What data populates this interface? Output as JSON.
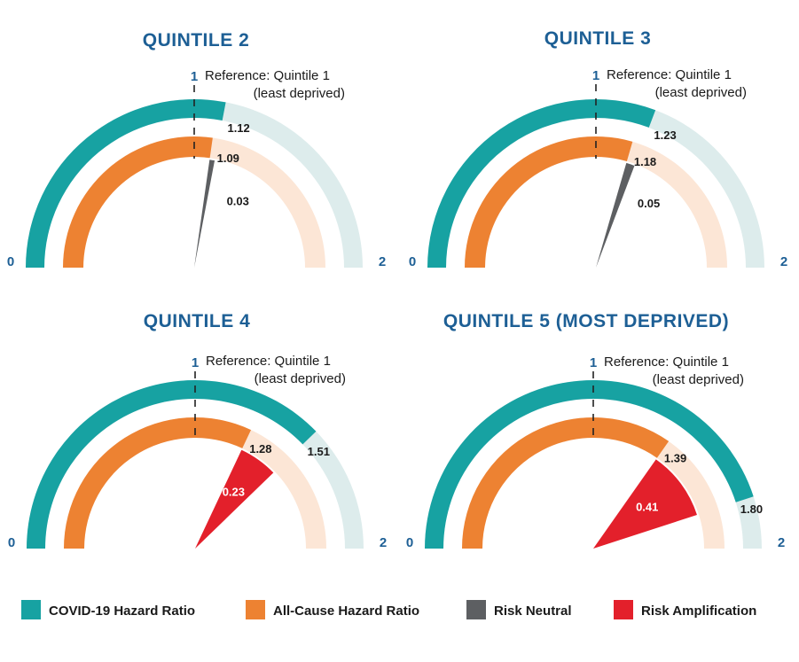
{
  "colors": {
    "covid": "#17a2a2",
    "covid_track": "#ddecec",
    "allcause": "#ed8232",
    "allcause_track": "#fce6d6",
    "neutral": "#5d5f62",
    "amplification": "#e3202b",
    "title": "#1d5f95"
  },
  "chart_data": [
    {
      "type": "gauge",
      "title": "QUINTILE 2",
      "range": [
        0,
        2
      ],
      "min_label": "0",
      "max_label": "2",
      "reference_value": 1,
      "reference_tick_label": "1",
      "reference_line1": "Reference: Quintile 1",
      "reference_line2": "(least deprived)",
      "covid_hr": 1.12,
      "covid_label": "1.12",
      "allcause_hr": 1.09,
      "allcause_label": "1.09",
      "risk_value": 0.03,
      "risk_label": "0.03",
      "risk_type": "neutral"
    },
    {
      "type": "gauge",
      "title": "QUINTILE 3",
      "range": [
        0,
        2
      ],
      "min_label": "0",
      "max_label": "2",
      "reference_value": 1,
      "reference_tick_label": "1",
      "reference_line1": "Reference: Quintile 1",
      "reference_line2": "(least deprived)",
      "covid_hr": 1.23,
      "covid_label": "1.23",
      "allcause_hr": 1.18,
      "allcause_label": "1.18",
      "risk_value": 0.05,
      "risk_label": "0.05",
      "risk_type": "neutral"
    },
    {
      "type": "gauge",
      "title": "QUINTILE 4",
      "range": [
        0,
        2
      ],
      "min_label": "0",
      "max_label": "2",
      "reference_value": 1,
      "reference_tick_label": "1",
      "reference_line1": "Reference: Quintile 1",
      "reference_line2": "(least deprived)",
      "covid_hr": 1.51,
      "covid_label": "1.51",
      "allcause_hr": 1.28,
      "allcause_label": "1.28",
      "risk_value": 0.23,
      "risk_label": "0.23",
      "risk_type": "amplification"
    },
    {
      "type": "gauge",
      "title": "QUINTILE 5 (MOST DEPRIVED)",
      "range": [
        0,
        2
      ],
      "min_label": "0",
      "max_label": "2",
      "reference_value": 1,
      "reference_tick_label": "1",
      "reference_line1": "Reference: Quintile 1",
      "reference_line2": "(least deprived)",
      "covid_hr": 1.8,
      "covid_label": "1.80",
      "allcause_hr": 1.39,
      "allcause_label": "1.39",
      "risk_value": 0.41,
      "risk_label": "0.41",
      "risk_type": "amplification"
    }
  ],
  "legend": [
    {
      "label": "COVID-19 Hazard Ratio",
      "color_key": "covid"
    },
    {
      "label": "All-Cause Hazard Ratio",
      "color_key": "allcause"
    },
    {
      "label": "Risk Neutral",
      "color_key": "neutral"
    },
    {
      "label": "Risk Amplification",
      "color_key": "amplification"
    }
  ]
}
